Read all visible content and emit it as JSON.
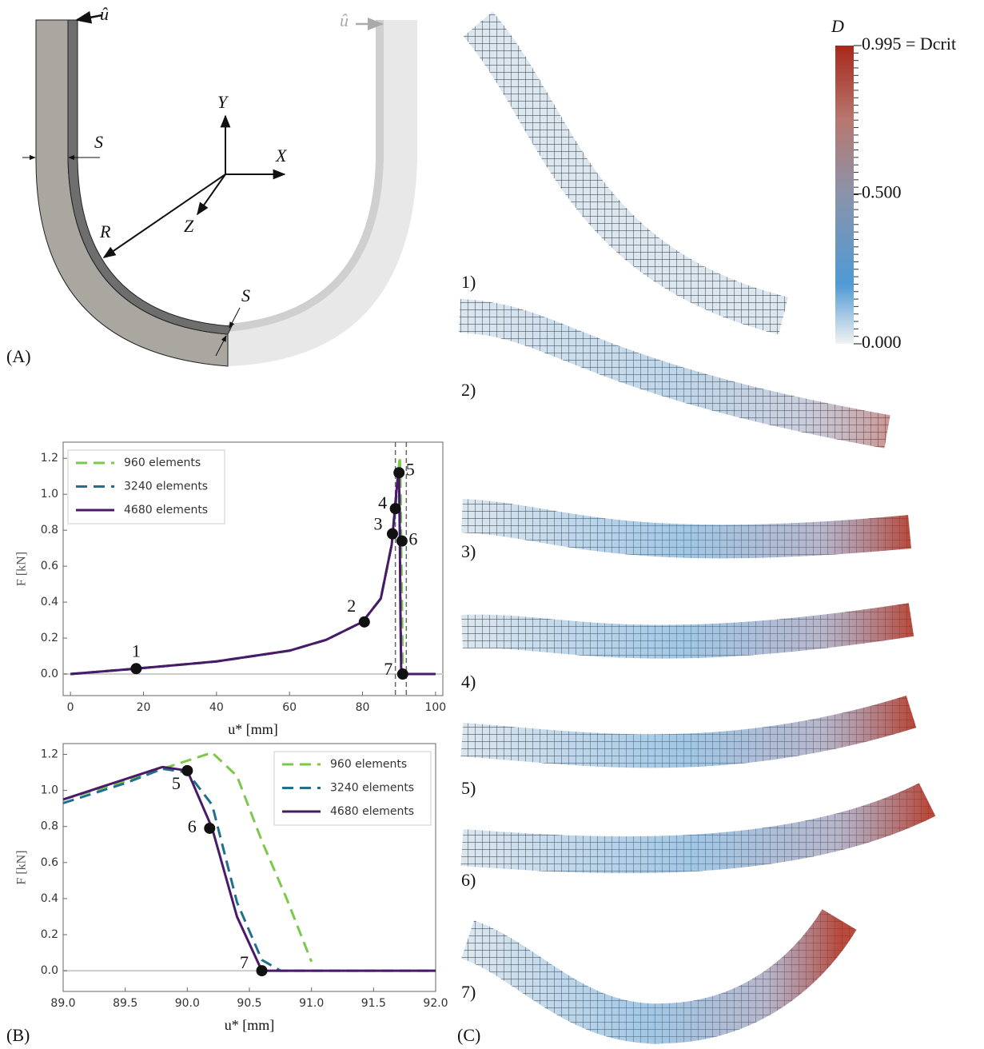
{
  "panels": {
    "a": "(A)",
    "b": "(B)",
    "c": "(C)"
  },
  "diagram": {
    "u_hat_left": "û",
    "u_hat_right": "û",
    "s_top": "S",
    "s_bottom": "S",
    "y_axis": "Y",
    "x_axis": "X",
    "z_axis": "Z",
    "radius": "R"
  },
  "chart_data": [
    {
      "type": "line",
      "xlabel": "u* [mm]",
      "ylabel": "F [kN]",
      "legend": "upper left",
      "xlim": [
        -2,
        102
      ],
      "ylim": [
        -0.12,
        1.29
      ],
      "xticks": [
        0,
        20,
        40,
        60,
        80,
        100
      ],
      "yticks": [
        {
          "value": 0,
          "label": "0.0"
        },
        0.2,
        0.4,
        0.6,
        0.8,
        {
          "value": 1,
          "label": "1.0"
        },
        1.2
      ],
      "vlines": [
        89,
        92
      ],
      "series": [
        {
          "name": "960 elements",
          "color": "#7cc84a",
          "dash": true,
          "x": [
            0,
            18,
            40,
            60,
            70,
            80,
            85,
            88,
            89,
            89.5,
            89.8,
            90.2,
            90.4,
            90.6,
            90.8,
            91.0,
            91.1,
            100
          ],
          "values": [
            0,
            0.03,
            0.07,
            0.13,
            0.19,
            0.29,
            0.42,
            0.72,
            0.95,
            1.05,
            1.12,
            1.21,
            1.08,
            0.72,
            0.4,
            0.05,
            0,
            0
          ]
        },
        {
          "name": "3240 elements",
          "color": "#1f6f8e",
          "dash": true,
          "x": [
            0,
            18,
            40,
            60,
            70,
            80,
            85,
            88,
            89,
            89.5,
            89.8,
            90.0,
            90.2,
            90.4,
            90.6,
            90.7,
            100
          ],
          "values": [
            0,
            0.03,
            0.07,
            0.13,
            0.19,
            0.29,
            0.42,
            0.72,
            0.93,
            1.04,
            1.12,
            1.1,
            0.92,
            0.38,
            0.06,
            0,
            0
          ]
        },
        {
          "name": "4680 elements",
          "color": "#4a1a6a",
          "dash": false,
          "x": [
            0,
            18,
            40,
            60,
            70,
            80,
            85,
            88,
            89,
            89.8,
            90.0,
            90.2,
            90.4,
            90.6,
            100
          ],
          "values": [
            0,
            0.03,
            0.07,
            0.13,
            0.19,
            0.29,
            0.42,
            0.72,
            0.95,
            1.13,
            1.11,
            0.79,
            0.3,
            0,
            0
          ]
        }
      ],
      "points": {
        "labels": [
          "1",
          "2",
          "3",
          "4",
          "5",
          "6",
          "7"
        ],
        "x": [
          18,
          80.5,
          88.2,
          89,
          90,
          90.8,
          91
        ],
        "values": [
          0.03,
          0.29,
          0.78,
          0.92,
          1.12,
          0.74,
          0
        ]
      }
    },
    {
      "type": "line",
      "xlabel": "u* [mm]",
      "ylabel": "F [kN]",
      "legend": "upper right",
      "xlim": [
        89,
        92
      ],
      "ylim": [
        -0.115,
        1.26
      ],
      "xticks": [
        {
          "value": 89,
          "label": "89.0"
        },
        89.5,
        {
          "value": 90,
          "label": "90.0"
        },
        90.5,
        {
          "value": 91,
          "label": "91.0"
        },
        91.5,
        {
          "value": 92,
          "label": "92.0"
        }
      ],
      "yticks": [
        {
          "value": 0,
          "label": "0.0"
        },
        0.2,
        0.4,
        0.6,
        0.8,
        {
          "value": 1,
          "label": "1.0"
        },
        1.2
      ],
      "series": [
        {
          "name": "960 elements",
          "color": "#7cc84a",
          "dash": true,
          "x": [
            89,
            89.5,
            89.8,
            90.2,
            90.4,
            90.6,
            90.8,
            91.0
          ],
          "values": [
            0.95,
            1.05,
            1.12,
            1.21,
            1.08,
            0.72,
            0.4,
            0.05
          ]
        },
        {
          "name": "3240 elements",
          "color": "#1f6f8e",
          "dash": true,
          "x": [
            89,
            89.5,
            89.8,
            90.0,
            90.2,
            90.4,
            90.6,
            90.75,
            92
          ],
          "values": [
            0.93,
            1.04,
            1.12,
            1.1,
            0.92,
            0.38,
            0.06,
            0,
            0
          ]
        },
        {
          "name": "4680 elements",
          "color": "#4a1a6a",
          "dash": false,
          "x": [
            89,
            89.8,
            90.0,
            90.2,
            90.4,
            90.6,
            92
          ],
          "values": [
            0.95,
            1.13,
            1.11,
            0.79,
            0.3,
            0,
            0
          ]
        }
      ],
      "points": {
        "labels": [
          "5",
          "6",
          "7"
        ],
        "x": [
          90.0,
          90.18,
          90.6
        ],
        "values": [
          1.11,
          0.79,
          0
        ]
      }
    }
  ],
  "colorbar": {
    "label": "D",
    "lim": [
      0,
      0.995
    ],
    "ticks": [
      {
        "value": 0,
        "label": "0.000"
      },
      {
        "value": 0.5,
        "label": "0.500"
      },
      {
        "value": 0.995,
        "label": "0.995 = Dcrit"
      }
    ]
  },
  "stages": [
    "1)",
    "2)",
    "3)",
    "4)",
    "5)",
    "6)",
    "7)"
  ]
}
